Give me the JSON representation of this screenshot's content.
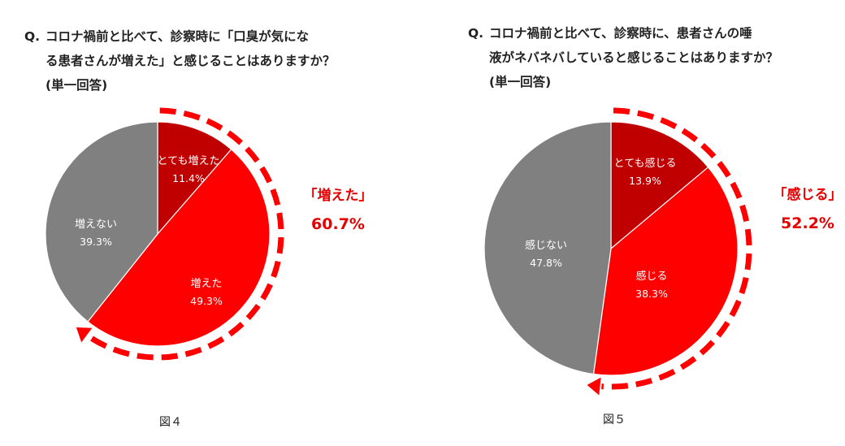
{
  "chart_data": [
    {
      "type": "pie",
      "title_lines": [
        "Q.",
        "コロナ禍前と比べて、診察時に「口臭が気にな",
        "る患者さんが増えた」と感じることはありますか？",
        "(単一回答)"
      ],
      "slices": [
        {
          "label": "とても増えた",
          "value": 11.4,
          "value_label": "11.4%",
          "color": "#c00000"
        },
        {
          "label": "増えた",
          "value": 49.3,
          "value_label": "49.3%",
          "color": "#ff0000"
        },
        {
          "label": "増えない",
          "value": 39.3,
          "value_label": "39.3%",
          "color": "#808080"
        }
      ],
      "callout": {
        "label": "「増えた」",
        "value": "60.7%",
        "total": 60.7
      },
      "figure_label": "図４"
    },
    {
      "type": "pie",
      "title_lines": [
        "Q.",
        "コロナ禍前と比べて、診察時に、患者さんの唾",
        "液がネバネバしていると感じることはありますか？",
        "(単一回答)"
      ],
      "slices": [
        {
          "label": "とても感じる",
          "value": 13.9,
          "value_label": "13.9%",
          "color": "#c00000"
        },
        {
          "label": "感じる",
          "value": 38.3,
          "value_label": "38.3%",
          "color": "#ff0000"
        },
        {
          "label": "感じない",
          "value": 47.8,
          "value_label": "47.8%",
          "color": "#808080"
        }
      ],
      "callout": {
        "label": "「感じる」",
        "value": "52.2%",
        "total": 52.2
      },
      "figure_label": "図５"
    }
  ]
}
